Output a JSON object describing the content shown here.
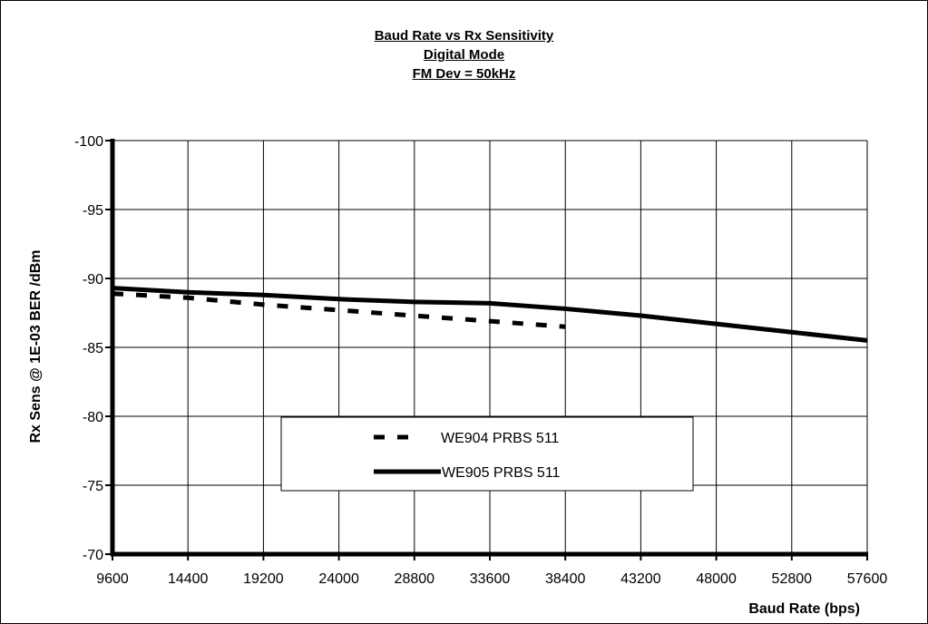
{
  "chart_data": {
    "type": "line",
    "title": [
      "Baud Rate vs  Rx Sensitivity",
      "Digital Mode",
      "FM Dev = 50kHz"
    ],
    "xlabel": "Baud Rate (bps)",
    "ylabel": "Rx Sens @ 1E-03 BER /dBm",
    "x_ticks": [
      "9600",
      "14400",
      "19200",
      "24000",
      "28800",
      "33600",
      "38400",
      "43200",
      "48000",
      "52800",
      "57600"
    ],
    "y_ticks": [
      "-100",
      "-95",
      "-90",
      "-85",
      "-80",
      "-75",
      "-70"
    ],
    "xlim": [
      9600,
      57600
    ],
    "ylim": [
      -100,
      -70
    ],
    "y_inverted": true,
    "grid": true,
    "legend_position": "lower-center",
    "series": [
      {
        "name": "WE904 PRBS 511",
        "style": "dashed",
        "color": "#000000",
        "x": [
          9600,
          14400,
          19200,
          24000,
          28800,
          33600,
          38400
        ],
        "y": [
          -88.9,
          -88.6,
          -88.1,
          -87.7,
          -87.3,
          -86.9,
          -86.5
        ]
      },
      {
        "name": "WE905 PRBS 511",
        "style": "solid",
        "color": "#000000",
        "x": [
          9600,
          14400,
          19200,
          24000,
          28800,
          33600,
          38400,
          43200,
          48000,
          52800,
          57600
        ],
        "y": [
          -89.3,
          -89.0,
          -88.8,
          -88.5,
          -88.3,
          -88.2,
          -87.8,
          -87.3,
          -86.7,
          -86.1,
          -85.5
        ]
      }
    ]
  }
}
